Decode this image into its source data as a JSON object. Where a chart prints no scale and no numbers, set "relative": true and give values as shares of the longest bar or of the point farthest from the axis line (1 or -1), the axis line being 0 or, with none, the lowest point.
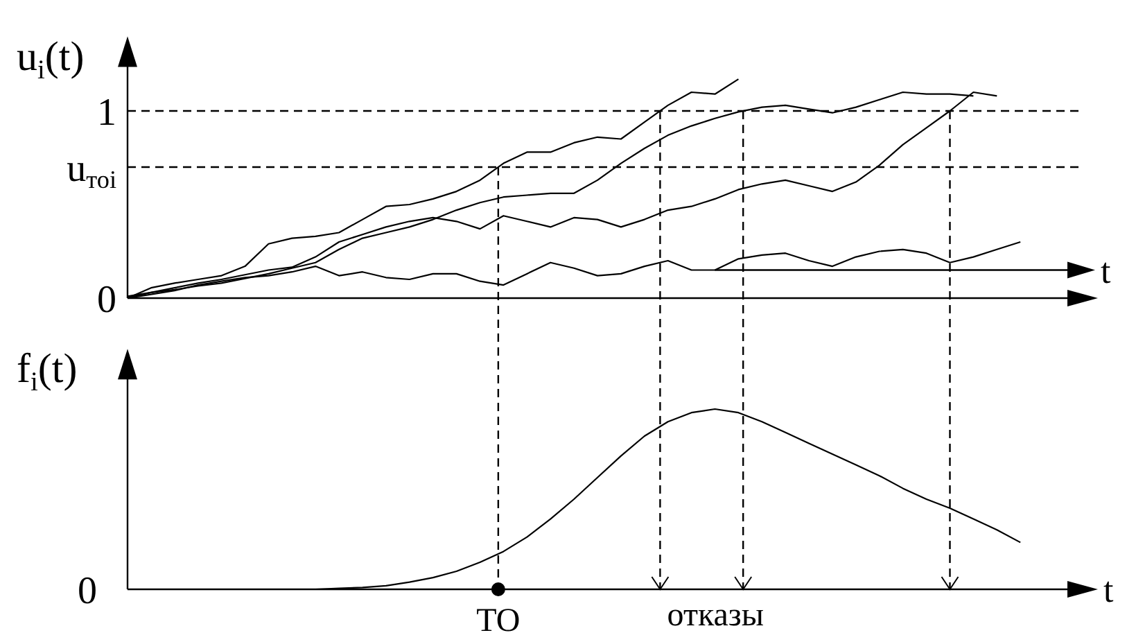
{
  "chart_data": [
    {
      "type": "line",
      "ylabel": "u$_{i}$(t)",
      "xlabel": "t",
      "categories": [
        null,
        null,
        null,
        null,
        null,
        null,
        null,
        null,
        null,
        null,
        null,
        null,
        null,
        null,
        null,
        null,
        null,
        null,
        null,
        null,
        null,
        null,
        null,
        null,
        null,
        null,
        null,
        null,
        null,
        null,
        null,
        null,
        null,
        null,
        null,
        null,
        null,
        null,
        null,
        null,
        null
      ],
      "ylim": [
        0,
        1.25
      ],
      "yticks": [
        0,
        {
          "value": 0.7,
          "label": "u$_{тоi}$"
        },
        1
      ],
      "grid": false,
      "legend": false,
      "marker": "none",
      "line_style": "solid",
      "series": [
        {
          "color": "#000000",
          "values": [
            0,
            0.055,
            0.08,
            0.1,
            0.12,
            0.17,
            0.29,
            0.32,
            0.33,
            0.35,
            0.42,
            0.49,
            0.5,
            0.53,
            0.57,
            0.63,
            0.72,
            0.78,
            0.78,
            0.83,
            0.86,
            0.85,
            0.94,
            1.03,
            1.1,
            1.09,
            1.17,
            null,
            null,
            null,
            null,
            null,
            null,
            null,
            null,
            null,
            null,
            null,
            null,
            null,
            null
          ]
        },
        {
          "color": "#000000",
          "values": [
            0.01,
            0.03,
            0.045,
            0.065,
            0.08,
            0.105,
            0.13,
            0.16,
            0.19,
            0.26,
            0.32,
            0.35,
            0.38,
            0.42,
            0.47,
            0.51,
            0.54,
            0.55,
            0.56,
            0.56,
            0.63,
            0.72,
            0.8,
            0.87,
            0.92,
            0.96,
            0.995,
            1.02,
            1.03,
            1.01,
            0.99,
            1.02,
            1.06,
            1.1,
            1.09,
            1.09,
            1.08,
            null,
            null,
            null,
            null
          ]
        },
        {
          "color": "#000000",
          "values": [
            0,
            0.03,
            0.055,
            0.08,
            0.1,
            0.125,
            0.15,
            0.165,
            0.22,
            0.3,
            0.34,
            0.38,
            0.41,
            0.43,
            0.41,
            0.37,
            0.44,
            0.41,
            0.38,
            0.43,
            0.42,
            0.38,
            0.42,
            0.47,
            0.49,
            0.53,
            0.58,
            0.61,
            0.63,
            0.6,
            0.57,
            0.62,
            0.71,
            0.82,
            0.91,
            1.0,
            1.1,
            1.08,
            null,
            null,
            null
          ]
        },
        {
          "color": "#000000",
          "values": [
            0,
            0.02,
            0.04,
            0.07,
            0.09,
            0.11,
            0.12,
            0.14,
            0.17,
            0.12,
            0.14,
            0.11,
            0.1,
            0.13,
            0.13,
            0.09,
            0.07,
            0.13,
            0.19,
            0.16,
            0.12,
            0.13,
            0.17,
            0.2,
            0.15,
            0.15,
            0.21,
            0.23,
            0.24,
            0.2,
            0.17,
            0.22,
            0.25,
            0.26,
            0.24,
            0.19,
            0.22,
            0.26,
            0.3,
            null,
            null
          ]
        }
      ],
      "ref_lines": [
        {
          "axis": "y",
          "value": 1,
          "line_style": "dashed"
        },
        {
          "axis": "y",
          "value": 0.7,
          "line_style": "dashed"
        }
      ]
    },
    {
      "type": "line",
      "relative": true,
      "ylabel": "f$_{i}$(t)",
      "xlabel": "t",
      "categories": [
        null,
        null,
        null,
        null,
        null,
        null,
        null,
        null,
        null,
        null,
        null,
        null,
        null,
        null,
        null,
        null,
        null,
        null,
        null,
        null,
        null,
        null,
        null,
        null,
        null,
        null,
        null,
        null,
        null,
        null,
        null,
        null,
        null,
        null,
        null,
        null,
        null,
        null,
        null,
        null,
        null
      ],
      "grid": false,
      "legend": false,
      "marker": "none",
      "line_style": "solid",
      "series": [
        {
          "color": "#000000",
          "values": [
            null,
            null,
            null,
            null,
            null,
            null,
            null,
            0,
            0,
            0.005,
            0.01,
            0.02,
            0.04,
            0.065,
            0.1,
            0.15,
            0.21,
            0.29,
            0.39,
            0.5,
            0.62,
            0.74,
            0.85,
            0.93,
            0.98,
            1,
            0.98,
            0.93,
            0.87,
            0.81,
            0.75,
            0.69,
            0.63,
            0.56,
            0.5,
            0.45,
            0.39,
            0.33,
            0.26,
            null,
            null
          ]
        }
      ],
      "annotations": [
        "0",
        "ТО",
        "отказы"
      ]
    }
  ]
}
